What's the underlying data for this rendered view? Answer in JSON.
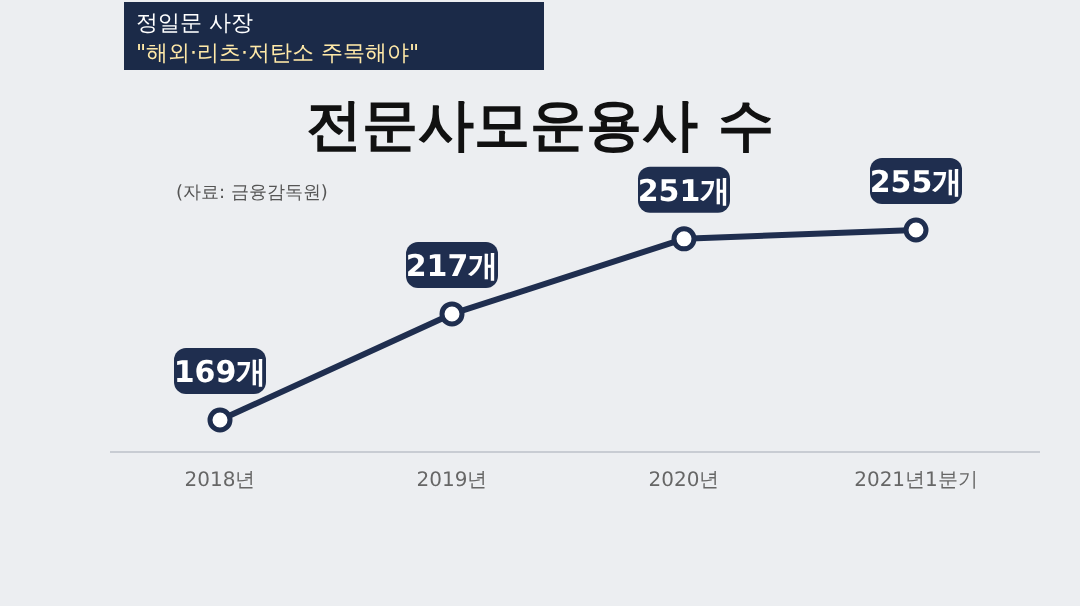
{
  "chart_data": {
    "type": "line",
    "title": "전문사모운용사 수",
    "categories": [
      "2018년",
      "2019년",
      "2020년",
      "2021년1분기"
    ],
    "series": [
      {
        "color": "#1f2e4f",
        "values": [
          169,
          217,
          251,
          255
        ],
        "value_labels": [
          "169개",
          "217개",
          "251개",
          "255개"
        ]
      }
    ],
    "marker": "circle",
    "line_style": "solid",
    "annotations": [
      "(자료: 금융감독원)",
      "정일문 사장",
      "\"해외·리츠·저탄소 주목해야\""
    ]
  }
}
